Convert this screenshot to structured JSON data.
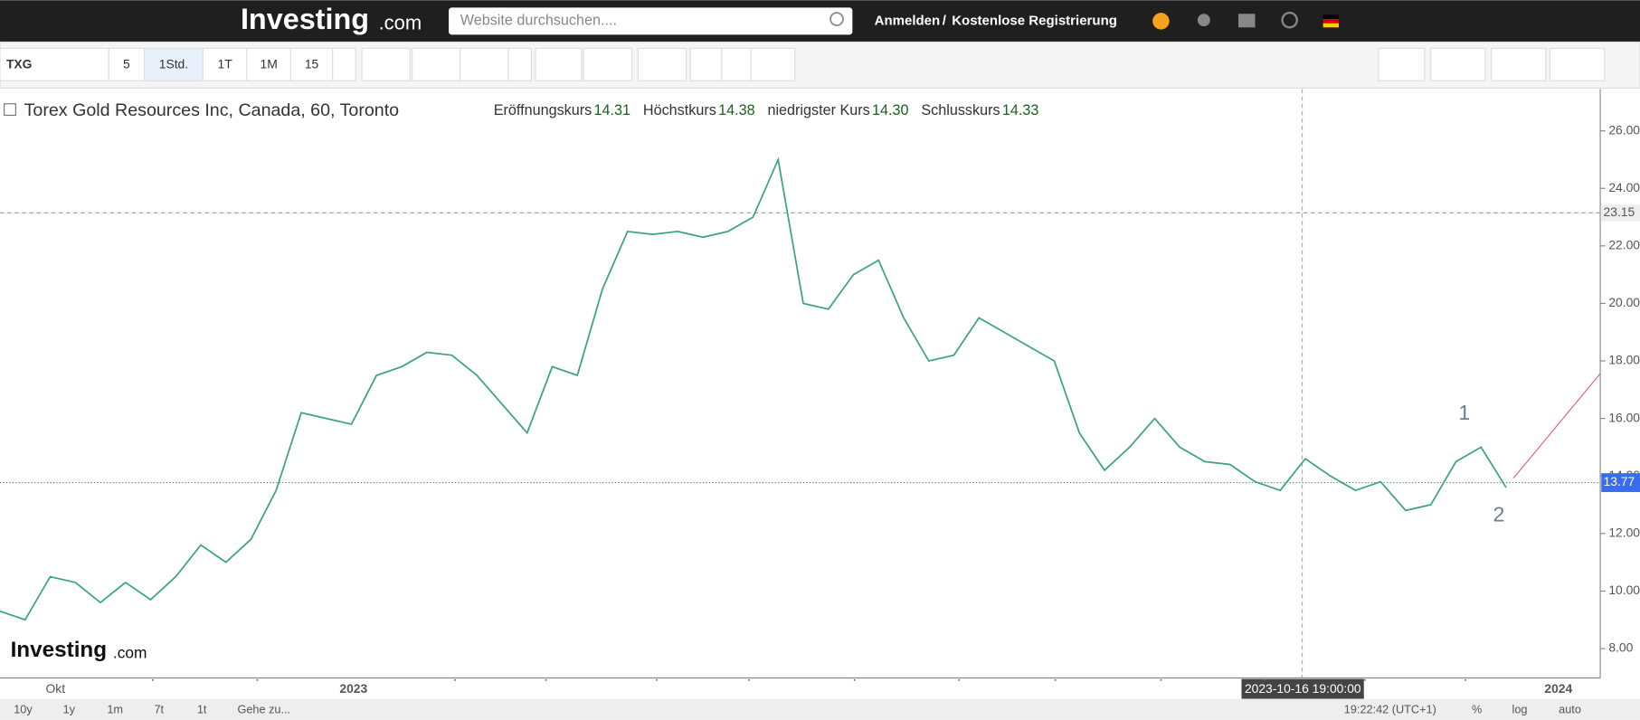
{
  "top_nav": {
    "logo": "Investing",
    "logo_suffix": ".com",
    "search_placeholder": "Website durchsuchen....",
    "login": "Anmelden",
    "separator": "/",
    "register": "Kostenlose Registrierung"
  },
  "toolbar": {
    "symbol": "TXG",
    "intervals": [
      "5",
      "1Std.",
      "1T",
      "1M",
      "15"
    ]
  },
  "chart_data": {
    "type": "line",
    "title": "Torex Gold Resources Inc, Canada, 60, Toronto",
    "ohlc": [
      {
        "label": "Eröffnungskurs",
        "value": "14.31"
      },
      {
        "label": "Höchstkurs",
        "value": "14.38"
      },
      {
        "label": "niedrigster Kurs",
        "value": "14.30"
      },
      {
        "label": "Schlusskurs",
        "value": "14.33"
      }
    ],
    "series": [
      {
        "name": "TXG",
        "color": "#3aa57a",
        "values": [
          9.3,
          9.0,
          10.5,
          10.3,
          9.6,
          10.3,
          9.7,
          10.5,
          11.6,
          11.0,
          11.8,
          13.5,
          16.2,
          16.0,
          15.8,
          17.5,
          17.8,
          18.3,
          18.2,
          17.5,
          16.5,
          15.5,
          17.8,
          17.5,
          20.5,
          22.5,
          22.4,
          22.5,
          22.3,
          22.5,
          23.0,
          25.0,
          20.0,
          19.8,
          21.0,
          21.5,
          19.5,
          18.0,
          18.2,
          19.5,
          19.0,
          18.5,
          18.0,
          15.5,
          14.2,
          15.0,
          16.0,
          15.0,
          14.5,
          14.4,
          13.8,
          13.5,
          14.6,
          14.0,
          13.5,
          13.8,
          12.8,
          13.0,
          14.5,
          15.0,
          13.6
        ]
      }
    ],
    "ylim": [
      6.98,
      27.45
    ],
    "yticks": [
      {
        "value": 8,
        "label": "8.00"
      },
      {
        "value": 10,
        "label": "10.00"
      },
      {
        "value": 12,
        "label": "12.00"
      },
      {
        "value": 14,
        "label": "14.00"
      },
      {
        "value": 16,
        "label": "16.00"
      },
      {
        "value": 18,
        "label": "18.00"
      },
      {
        "value": 20,
        "label": "20.00"
      },
      {
        "value": 22,
        "label": "22.00"
      },
      {
        "value": 24,
        "label": "24.00"
      },
      {
        "value": 26,
        "label": "26.00"
      }
    ],
    "price_line": {
      "value": 13.77,
      "label": "13.77"
    },
    "crosshair": {
      "value": 23.15,
      "label": "23.15",
      "time": "2023-10-16 19:00:00"
    },
    "x_axis_labels": [
      "Okt",
      "2023",
      "2024"
    ],
    "annotations": [
      "1",
      "2"
    ],
    "watermark": "Investing",
    "watermark_suffix": ".com"
  },
  "bottom_bar": {
    "ranges": [
      "10y",
      "1y",
      "1m",
      "7t",
      "1t"
    ],
    "goto": "Gehe zu...",
    "clock": "19:22:42 (UTC+1)",
    "percent": "%",
    "log": "log",
    "auto": "auto"
  }
}
